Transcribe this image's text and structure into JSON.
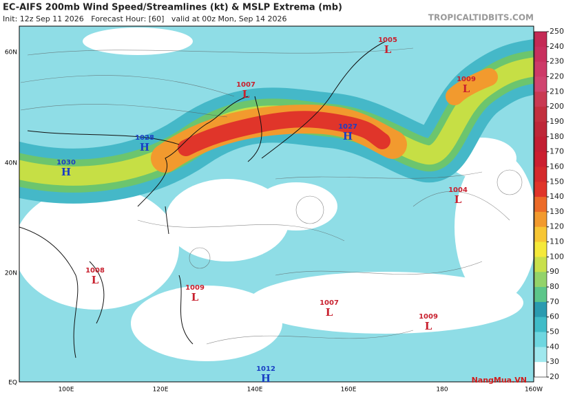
{
  "header": {
    "title": "EC-AIFS 200mb Wind Speed/Streamlines (kt) & MSLP Extrema (mb)",
    "subtitle": "Init: 12z Sep 11 2026   Forecast Hour: [60]   valid at 00z Mon, Sep 14 2026",
    "brand": "TROPICALTIDBITS.COM"
  },
  "map": {
    "lat_labels": [
      "60N",
      "40N",
      "20N",
      "EQ"
    ],
    "lon_labels": [
      "100E",
      "120E",
      "140E",
      "160E",
      "180",
      "160W"
    ],
    "systems": [
      {
        "type": "L",
        "pressure": "1005"
      },
      {
        "type": "L",
        "pressure": "1007"
      },
      {
        "type": "L",
        "pressure": "1009"
      },
      {
        "type": "H",
        "pressure": "1028"
      },
      {
        "type": "H",
        "pressure": "1027"
      },
      {
        "type": "H",
        "pressure": "1030"
      },
      {
        "type": "L",
        "pressure": "1004"
      },
      {
        "type": "L",
        "pressure": "1008"
      },
      {
        "type": "L",
        "pressure": "1009"
      },
      {
        "type": "L",
        "pressure": "1007"
      },
      {
        "type": "L",
        "pressure": "1009"
      },
      {
        "type": "H",
        "pressure": "1012"
      }
    ]
  },
  "colorbar": {
    "ticks": [
      250,
      240,
      230,
      220,
      210,
      200,
      190,
      180,
      170,
      160,
      150,
      140,
      130,
      120,
      110,
      100,
      90,
      80,
      70,
      60,
      50,
      40,
      30,
      20
    ]
  },
  "watermark": "NangMua.VN"
}
